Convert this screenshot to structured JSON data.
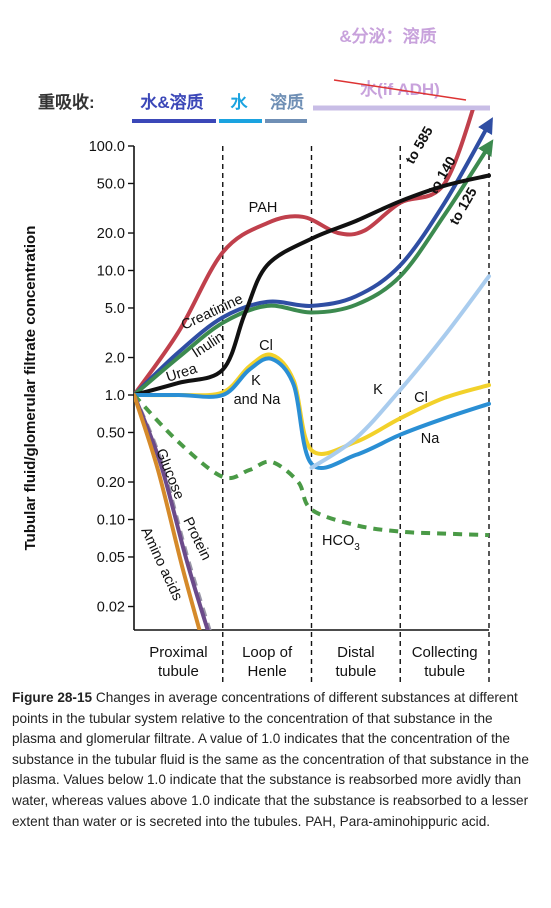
{
  "annotations": {
    "secretion": "&分泌：溶质",
    "struck": "水(if ADH)",
    "reabsorb_label": "重吸收:",
    "reabsorb_items": [
      {
        "text": "水&溶质",
        "color": "#3b47b8"
      },
      {
        "text": "水",
        "color": "#1aa3e0"
      },
      {
        "text": "溶质",
        "color": "#6f8fb5"
      }
    ]
  },
  "caption": {
    "figure": "Figure 28-15",
    "text": "Changes in average concentrations of different substances at different points in the tubular system relative to the concentration of that substance in the plasma and glomerular filtrate. A value of 1.0 indicates that the concentration of the substance in the tubular fluid is the same as the concentration of that substance in the plasma. Values below 1.0 indicate that the substance is reabsorbed more avidly than water, whereas values above 1.0 indicate that the substance is reabsorbed to a lesser extent than water or is secreted into the tubules. PAH, Para-aminohippuric acid."
  },
  "chart_data": {
    "type": "line",
    "ylabel": "Tubular fluid/glomerular filtrate concentration",
    "yscale": "log",
    "ylim": [
      0.015,
      100
    ],
    "yticks": [
      "100.0",
      "50.0",
      "20.0",
      "10.0",
      "5.0",
      "2.0",
      "1.0",
      "0.50",
      "0.20",
      "0.10",
      "0.05",
      "0.02"
    ],
    "segments": [
      "Proximal tubule",
      "Loop of Henle",
      "Distal tubule",
      "Collecting tubule"
    ],
    "segment_lines": [
      [
        "Proximal",
        "tubule"
      ],
      [
        "Loop of",
        "Henle"
      ],
      [
        "Distal",
        "tubule"
      ],
      [
        "Collecting",
        "tubule"
      ]
    ],
    "x_note": "x = position along tubule: 0 = start of proximal tubule, 1 = end of proximal, 2 = end of loop of Henle, 3 = end of distal, 4 = end of collecting tubule",
    "series": [
      {
        "name": "PAH",
        "color": "#c0404c",
        "style": "solid",
        "points": [
          [
            0,
            1
          ],
          [
            0.5,
            3.2
          ],
          [
            1,
            14
          ],
          [
            1.5,
            24
          ],
          [
            1.9,
            27
          ],
          [
            2.3,
            20
          ],
          [
            2.6,
            21
          ],
          [
            3,
            35
          ],
          [
            3.5,
            50
          ],
          [
            3.9,
            300
          ]
        ],
        "end_label": "to 585"
      },
      {
        "name": "Inulin",
        "color": "#2f4ea3",
        "style": "solid",
        "points": [
          [
            0,
            1
          ],
          [
            0.5,
            2.2
          ],
          [
            1,
            4.2
          ],
          [
            1.5,
            5.6
          ],
          [
            2,
            5.2
          ],
          [
            2.5,
            6.2
          ],
          [
            3,
            11
          ],
          [
            3.5,
            35
          ],
          [
            4,
            150
          ]
        ],
        "end_label": "to 140"
      },
      {
        "name": "Creatinine",
        "color": "#3c8a4f",
        "style": "solid",
        "points": [
          [
            0,
            1
          ],
          [
            0.5,
            2
          ],
          [
            1,
            3.8
          ],
          [
            1.5,
            5.2
          ],
          [
            2,
            4.6
          ],
          [
            2.5,
            5.3
          ],
          [
            3,
            9
          ],
          [
            3.5,
            28
          ],
          [
            4,
            100
          ]
        ],
        "end_label": "to 125"
      },
      {
        "name": "Urea",
        "color": "#111111",
        "style": "solid",
        "points": [
          [
            0,
            1
          ],
          [
            0.5,
            1.25
          ],
          [
            1,
            1.6
          ],
          [
            1.25,
            4.5
          ],
          [
            1.5,
            11
          ],
          [
            2,
            18
          ],
          [
            2.5,
            25
          ],
          [
            3,
            36
          ],
          [
            3.5,
            48
          ],
          [
            4,
            58
          ]
        ]
      },
      {
        "name": "Cl",
        "color": "#f2d12a",
        "style": "solid",
        "points": [
          [
            0,
            1
          ],
          [
            0.5,
            1
          ],
          [
            1,
            1.05
          ],
          [
            1.3,
            1.7
          ],
          [
            1.55,
            2.1
          ],
          [
            1.8,
            1.3
          ],
          [
            2,
            0.36
          ],
          [
            2.5,
            0.42
          ],
          [
            3,
            0.65
          ],
          [
            3.5,
            0.95
          ],
          [
            4,
            1.2
          ]
        ]
      },
      {
        "name": "K and Na",
        "color": "#2a8fd4",
        "style": "solid",
        "points": [
          [
            0,
            1
          ],
          [
            0.5,
            1
          ],
          [
            1,
            1
          ],
          [
            1.3,
            1.6
          ],
          [
            1.55,
            1.95
          ],
          [
            1.8,
            1.2
          ],
          [
            2,
            0.28
          ],
          [
            2.5,
            0.33
          ],
          [
            3,
            0.48
          ],
          [
            3.5,
            0.65
          ],
          [
            4,
            0.85
          ]
        ]
      },
      {
        "name": "K",
        "color": "#a9ccee",
        "style": "solid",
        "points": [
          [
            2,
            0.26
          ],
          [
            2.5,
            0.45
          ],
          [
            3,
            1.1
          ],
          [
            3.5,
            3
          ],
          [
            4,
            9
          ]
        ]
      },
      {
        "name": "Na",
        "color": "#2a8fd4",
        "style": "solid",
        "points": []
      },
      {
        "name": "HCO3",
        "color": "#4a9a46",
        "style": "dashed",
        "points": [
          [
            0,
            1
          ],
          [
            0.5,
            0.42
          ],
          [
            1,
            0.22
          ],
          [
            1.3,
            0.25
          ],
          [
            1.55,
            0.29
          ],
          [
            1.85,
            0.2
          ],
          [
            2,
            0.12
          ],
          [
            2.5,
            0.09
          ],
          [
            3,
            0.08
          ],
          [
            3.5,
            0.077
          ],
          [
            4,
            0.075
          ]
        ]
      },
      {
        "name": "Glucose",
        "color": "#9a97a8",
        "style": "dashed",
        "points": [
          [
            0,
            1
          ],
          [
            0.3,
            0.3
          ],
          [
            0.6,
            0.05
          ],
          [
            0.9,
            0.01
          ]
        ]
      },
      {
        "name": "Protein",
        "color": "#6b4a8a",
        "style": "solid",
        "points": [
          [
            0,
            1
          ],
          [
            0.3,
            0.28
          ],
          [
            0.6,
            0.045
          ],
          [
            0.9,
            0.009
          ]
        ]
      },
      {
        "name": "Amino acids",
        "color": "#d58a2a",
        "style": "solid",
        "points": [
          [
            0,
            1
          ],
          [
            0.27,
            0.25
          ],
          [
            0.55,
            0.04
          ],
          [
            0.8,
            0.009
          ]
        ]
      }
    ]
  }
}
